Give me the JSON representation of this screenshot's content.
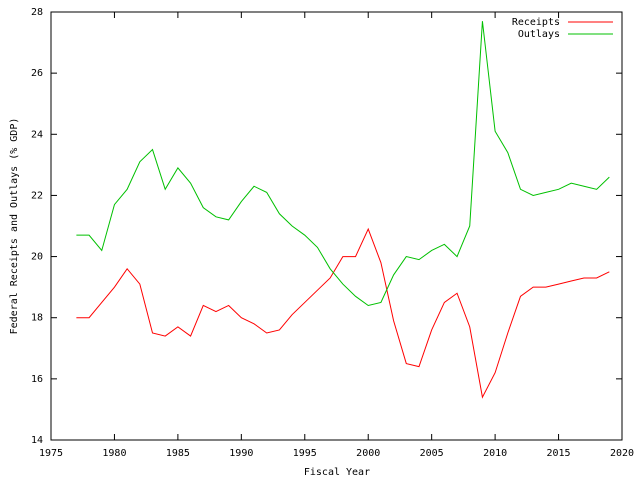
{
  "chart_data": {
    "type": "line",
    "xlabel": "Fiscal Year",
    "ylabel": "Federal Receipts and Outlays (% GDP)",
    "x": [
      1977,
      1978,
      1979,
      1980,
      1981,
      1982,
      1983,
      1984,
      1985,
      1986,
      1987,
      1988,
      1989,
      1990,
      1991,
      1992,
      1993,
      1994,
      1995,
      1996,
      1997,
      1998,
      1999,
      2000,
      2001,
      2002,
      2003,
      2004,
      2005,
      2006,
      2007,
      2008,
      2009,
      2010,
      2011,
      2012,
      2013,
      2014,
      2015,
      2016,
      2017,
      2018,
      2019
    ],
    "series": [
      {
        "name": "Receipts",
        "color": "#ff0000",
        "values": [
          18.0,
          18.0,
          18.5,
          19.0,
          19.6,
          19.1,
          17.5,
          17.4,
          17.7,
          17.4,
          18.4,
          18.2,
          18.4,
          18.0,
          17.8,
          17.5,
          17.6,
          18.1,
          18.5,
          18.9,
          19.3,
          20.0,
          20.0,
          20.9,
          19.8,
          17.9,
          16.5,
          16.4,
          17.6,
          18.5,
          18.8,
          17.7,
          15.4,
          16.2,
          17.5,
          18.7,
          19.0,
          19.0,
          19.1,
          19.2,
          19.3,
          19.3,
          19.5
        ]
      },
      {
        "name": "Outlays",
        "color": "#00c000",
        "values": [
          20.7,
          20.7,
          20.2,
          21.7,
          22.2,
          23.1,
          23.5,
          22.2,
          22.9,
          22.4,
          21.6,
          21.3,
          21.2,
          21.8,
          22.3,
          22.1,
          21.4,
          21.0,
          20.7,
          20.3,
          19.6,
          19.1,
          18.7,
          18.4,
          18.5,
          19.4,
          20.0,
          19.9,
          20.2,
          20.4,
          20.0,
          21.0,
          27.7,
          24.1,
          23.4,
          22.2,
          22.0,
          22.1,
          22.2,
          22.4,
          22.3,
          22.2,
          22.6
        ]
      }
    ],
    "xlim": [
      1975,
      2020
    ],
    "xticks": [
      1975,
      1980,
      1985,
      1990,
      1995,
      2000,
      2005,
      2010,
      2015,
      2020
    ],
    "ylim": [
      14,
      28
    ],
    "yticks": [
      14,
      16,
      18,
      20,
      22,
      24,
      26,
      28
    ],
    "legend": "top right"
  }
}
